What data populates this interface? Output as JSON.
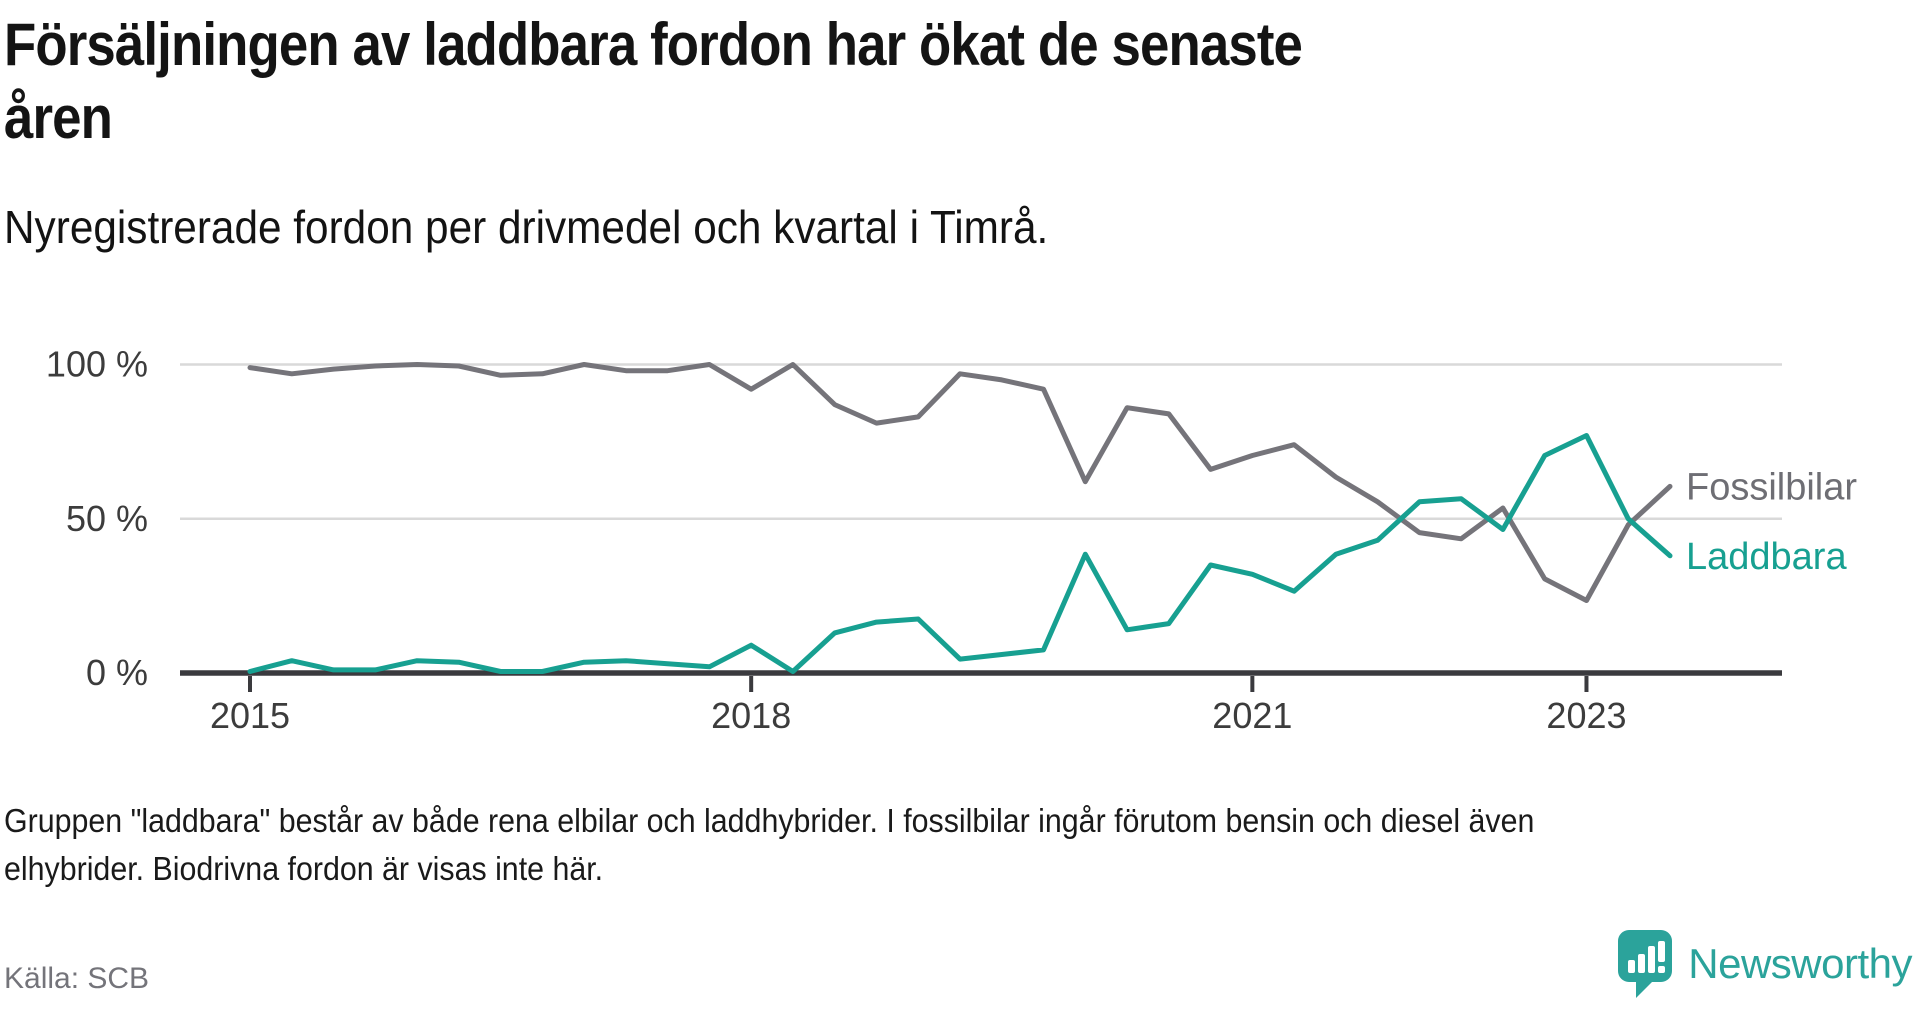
{
  "title_lines": [
    "Försäljningen av laddbara fordon har ökat de senaste",
    "åren"
  ],
  "subtitle": "Nyregistrerade fordon per drivmedel och kvartal i Timrå.",
  "footnote_lines": [
    "Gruppen \"laddbara\" består av både rena elbilar och laddhybrider. I fossilbilar ingår förutom bensin och diesel även",
    "elhybrider. Biodrivna fordon är visas inte här."
  ],
  "source": "Källa: SCB",
  "logo": {
    "text": "Newsworthy",
    "icon": "newsworthy-speech-bubble-chart-icon"
  },
  "colors": {
    "laddbara": "#17a091",
    "fossilbilar": "#75747a",
    "legend_fossil_text": "#6e6e74",
    "grid": "#d9d9d9",
    "axis": "#3a3a3e",
    "tick_label": "#3c3c3c",
    "background": "#ffffff",
    "logo_teal": "#2ba39b"
  },
  "chart_data": {
    "type": "line",
    "title": "",
    "xlabel": "",
    "ylabel": "",
    "ylim": [
      0,
      100
    ],
    "grid": "horizontal",
    "legend_position": "right-of-line-ends",
    "x": [
      "2015 Q1",
      "2015 Q2",
      "2015 Q3",
      "2015 Q4",
      "2016 Q1",
      "2016 Q2",
      "2016 Q3",
      "2016 Q4",
      "2017 Q1",
      "2017 Q2",
      "2017 Q3",
      "2017 Q4",
      "2018 Q1",
      "2018 Q2",
      "2018 Q3",
      "2018 Q4",
      "2019 Q1",
      "2019 Q2",
      "2019 Q3",
      "2019 Q4",
      "2020 Q1",
      "2020 Q2",
      "2020 Q3",
      "2020 Q4",
      "2021 Q1",
      "2021 Q2",
      "2021 Q3",
      "2021 Q4",
      "2022 Q1",
      "2022 Q2",
      "2022 Q3",
      "2022 Q4",
      "2023 Q1",
      "2023 Q2",
      "2023 Q3"
    ],
    "x_axis_ticks": [
      {
        "label": "2015",
        "index": 0
      },
      {
        "label": "2018",
        "index": 12
      },
      {
        "label": "2021",
        "index": 24
      },
      {
        "label": "2023",
        "index": 32
      }
    ],
    "y_ticks": [
      {
        "label": "0 %",
        "value": 0
      },
      {
        "label": "50 %",
        "value": 50
      },
      {
        "label": "100 %",
        "value": 100
      }
    ],
    "series": [
      {
        "name": "Fossilbilar",
        "color": "#75747a",
        "label_color": "#6e6e74",
        "values": [
          99,
          97,
          98.5,
          99.5,
          100,
          99.5,
          96.5,
          97,
          100,
          98,
          98,
          100,
          92,
          100,
          87,
          81,
          83,
          97,
          95,
          92,
          62,
          86,
          84,
          66,
          70.5,
          74,
          63.5,
          55.5,
          45.5,
          43.5,
          53.5,
          30.5,
          23.5,
          48,
          60.5
        ]
      },
      {
        "name": "Laddbara",
        "color": "#17a091",
        "label_color": "#17a091",
        "values": [
          0.5,
          4,
          1,
          1,
          4,
          3.5,
          0.5,
          0.5,
          3.5,
          4,
          3,
          2,
          9,
          0.5,
          13,
          16.5,
          17.5,
          4.5,
          6,
          7.5,
          38.5,
          14,
          16,
          35,
          32,
          26.5,
          38.5,
          43,
          55.5,
          56.5,
          46.5,
          70.5,
          77,
          50,
          38
        ]
      }
    ]
  }
}
